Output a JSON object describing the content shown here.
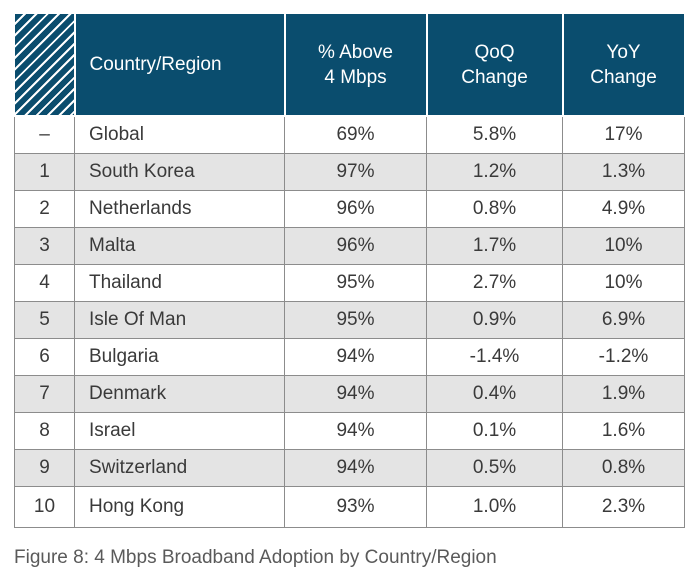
{
  "table": {
    "headers": {
      "rank": "",
      "country": "Country/Region",
      "above_4mbps_line1": "% Above",
      "above_4mbps_line2": "4 Mbps",
      "qoq_line1": "QoQ",
      "qoq_line2": "Change",
      "yoy_line1": "YoY",
      "yoy_line2": "Change"
    },
    "rows": [
      {
        "rank": "–",
        "country": "Global",
        "above": "69%",
        "qoq": "5.8%",
        "yoy": "17%"
      },
      {
        "rank": "1",
        "country": "South Korea",
        "above": "97%",
        "qoq": "1.2%",
        "yoy": "1.3%"
      },
      {
        "rank": "2",
        "country": "Netherlands",
        "above": "96%",
        "qoq": "0.8%",
        "yoy": "4.9%"
      },
      {
        "rank": "3",
        "country": "Malta",
        "above": "96%",
        "qoq": "1.7%",
        "yoy": "10%"
      },
      {
        "rank": "4",
        "country": "Thailand",
        "above": "95%",
        "qoq": "2.7%",
        "yoy": "10%"
      },
      {
        "rank": "5",
        "country": "Isle Of Man",
        "above": "95%",
        "qoq": "0.9%",
        "yoy": "6.9%"
      },
      {
        "rank": "6",
        "country": "Bulgaria",
        "above": "94%",
        "qoq": "-1.4%",
        "yoy": "-1.2%"
      },
      {
        "rank": "7",
        "country": "Denmark",
        "above": "94%",
        "qoq": "0.4%",
        "yoy": "1.9%"
      },
      {
        "rank": "8",
        "country": "Israel",
        "above": "94%",
        "qoq": "0.1%",
        "yoy": "1.6%"
      },
      {
        "rank": "9",
        "country": "Switzerland",
        "above": "94%",
        "qoq": "0.5%",
        "yoy": "0.8%"
      },
      {
        "rank": "10",
        "country": "Hong Kong",
        "above": "93%",
        "qoq": "1.0%",
        "yoy": "2.3%"
      }
    ]
  },
  "caption": "Figure 8: 4 Mbps Broadband Adoption by Country/Region",
  "colors": {
    "header_bg": "#0a4d6e",
    "stripe_bg": "#e4e4e4",
    "border": "#8c8c8c"
  }
}
